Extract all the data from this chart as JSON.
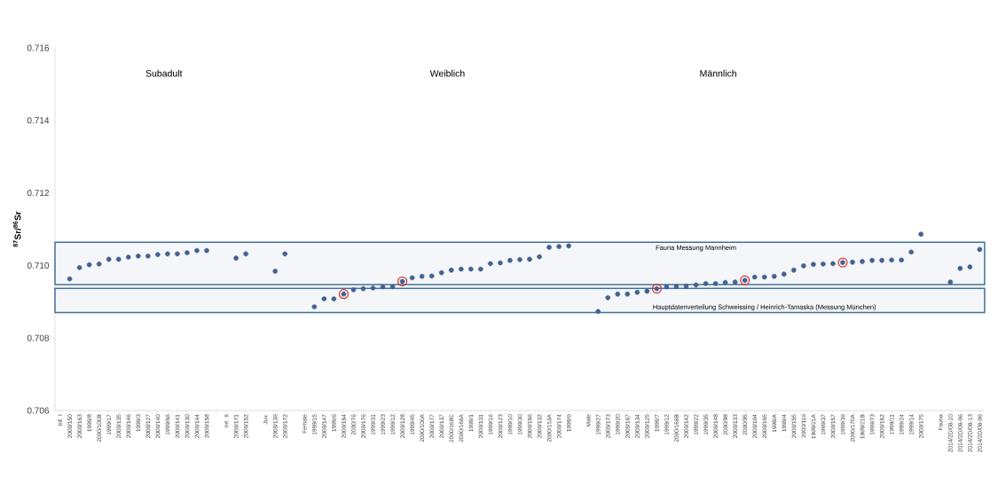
{
  "chart_data": {
    "type": "scatter",
    "ylabel": "**$^{87}$Sr/$^{86}$Sr**",
    "categories": [
      "Inf. I",
      "2000/150",
      "2000/163",
      "1999/8",
      "2000/100B",
      "1999/17",
      "2000/135",
      "2000/146",
      "1999/3",
      "2000/127",
      "2000/140",
      "1999/66",
      "2000/141",
      "2000/130",
      "2000/144",
      "2000/158",
      null,
      "Inf. II",
      "2000/171",
      "2000/152",
      null,
      "Juv.",
      "2000/139",
      "2000/172",
      null,
      "Female",
      "1999/15",
      "2000/147",
      "1999/6",
      "2000/164",
      "2000/76",
      "2000/176",
      "1999/31",
      "1999/23",
      "1999/12",
      "2000/128",
      "1999/45",
      "2000/100A",
      "2000/177",
      "2000/137",
      "2000/168C",
      "2000/168A",
      "1999/1",
      "2000/131",
      "1999/16",
      "2000/123",
      "1999/10",
      "1999/30",
      "2000/166",
      "2000/132",
      "2000/153A",
      "2000/174",
      "1999/9",
      null,
      "Male",
      "1999/27",
      "2000/173",
      "1999/20",
      "2000/167",
      "2000/134",
      "2000/125",
      "1999/7",
      "1999/12",
      "2000/168B",
      "2000/142",
      "1999/22",
      "1999/35",
      "2000/148",
      "2000/98",
      "2000/133",
      "2000/95",
      "2000/104",
      "2000/165",
      "1998/A",
      "1999/4",
      "2000/155",
      "2000/119",
      "1999/21A",
      "1999/37",
      "2000/157",
      "1999/39",
      "2000/170A",
      "1999/21B",
      "1999/73",
      "2000/162",
      "1999/11",
      "1999/24",
      "1999/14",
      "2000/175",
      null,
      "Fauna",
      "2014/2D/08-10",
      "2014/2D/08-06",
      "2014/2D/08-13",
      "2014/2D/08-06"
    ],
    "series": [
      {
        "color": "#44628f",
        "values": [
          null,
          0.70963,
          0.70994,
          0.71002,
          0.71004,
          0.71017,
          0.71017,
          0.71023,
          0.71026,
          0.71026,
          0.7103,
          0.71032,
          0.71032,
          0.71035,
          0.71041,
          0.71041,
          null,
          null,
          0.7102,
          0.71032,
          null,
          null,
          0.70984,
          0.71032,
          null,
          null,
          0.70886,
          0.70908,
          0.70908,
          0.70921,
          0.70933,
          0.70936,
          0.70938,
          0.70941,
          0.70941,
          0.70956,
          0.70966,
          0.7097,
          0.70971,
          0.7098,
          0.70987,
          0.7099,
          0.7099,
          0.7099,
          0.71005,
          0.71007,
          0.71014,
          0.71016,
          0.71017,
          0.71024,
          0.7105,
          0.71052,
          0.71054,
          null,
          null,
          0.70873,
          0.70911,
          0.70921,
          0.70921,
          0.70926,
          0.70929,
          0.70936,
          0.70941,
          0.70942,
          0.70943,
          0.70946,
          0.7095,
          0.7095,
          0.70953,
          0.70954,
          0.70959,
          0.70968,
          0.70968,
          0.7097,
          0.70976,
          0.70987,
          0.70999,
          0.71003,
          0.71004,
          0.71005,
          0.71008,
          0.71009,
          0.71011,
          0.71014,
          0.71014,
          0.71015,
          0.71015,
          0.71037,
          0.71086,
          null,
          null,
          0.70954,
          0.70992,
          0.70996,
          0.71044
        ]
      },
      {
        "color": "#d9312b",
        "values": [
          null,
          null,
          null,
          null,
          null,
          null,
          null,
          null,
          null,
          null,
          null,
          null,
          null,
          null,
          null,
          null,
          null,
          null,
          null,
          null,
          null,
          null,
          null,
          null,
          null,
          null,
          null,
          null,
          null,
          0.70921,
          null,
          null,
          null,
          null,
          null,
          0.70956,
          null,
          null,
          null,
          null,
          null,
          null,
          null,
          null,
          null,
          null,
          null,
          null,
          null,
          null,
          null,
          null,
          null,
          null,
          null,
          null,
          null,
          null,
          null,
          null,
          null,
          0.70936,
          null,
          null,
          null,
          null,
          null,
          null,
          null,
          null,
          0.70959,
          null,
          null,
          null,
          null,
          null,
          null,
          null,
          null,
          null,
          0.71008,
          null,
          null,
          null,
          null,
          null,
          null,
          null,
          null,
          null,
          null,
          null,
          null,
          null,
          null
        ]
      }
    ],
    "ylim": [
      0.706,
      0.716
    ],
    "yticks": [
      0.706,
      0.708,
      {
        "value": 0.71,
        "label": "0.710"
      },
      0.712,
      0.714,
      0.716
    ],
    "marker": "circle",
    "bands": [
      {
        "axis": "y",
        "from": 0.70947,
        "to": 0.71064,
        "label": "Fauna Messung Mannheim",
        "color": "#41719c"
      },
      {
        "axis": "y",
        "from": 0.7087,
        "to": 0.70937,
        "label": "Hauptdatenverteilung Schweissing / Heinrich-Tamaska (Messung München)",
        "color": "#41719c"
      }
    ],
    "annotations": [
      "Subadult",
      "Weiblich",
      "Männlich"
    ]
  }
}
